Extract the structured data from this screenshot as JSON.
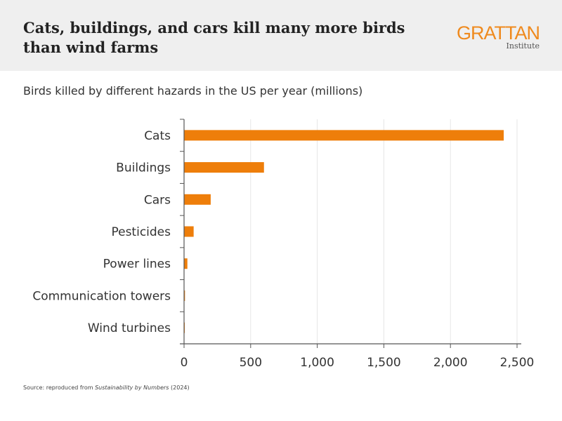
{
  "header": {
    "title": "Cats, buildings, and cars kill many more birds than wind farms",
    "logo_main": "GRATTAN",
    "logo_sub": "Institute"
  },
  "subtitle": "Birds killed by different hazards in the US per year (millions)",
  "source_prefix": "Source: reproduced from ",
  "source_italic": "Sustainability by Numbers",
  "source_suffix": " (2024)",
  "chart_data": {
    "type": "bar",
    "orientation": "horizontal",
    "categories": [
      "Cats",
      "Buildings",
      "Cars",
      "Pesticides",
      "Power lines",
      "Communication towers",
      "Wind turbines"
    ],
    "values": [
      2400,
      600,
      200,
      72,
      25,
      7,
      0.5
    ],
    "xlim": [
      0,
      2500
    ],
    "xticks": [
      0,
      500,
      1000,
      1500,
      2000,
      2500
    ],
    "xtick_labels": [
      "0",
      "500",
      "1,000",
      "1,500",
      "2,000",
      "2,500"
    ],
    "grid": "vertical",
    "bar_color": "#ee7e0a"
  }
}
